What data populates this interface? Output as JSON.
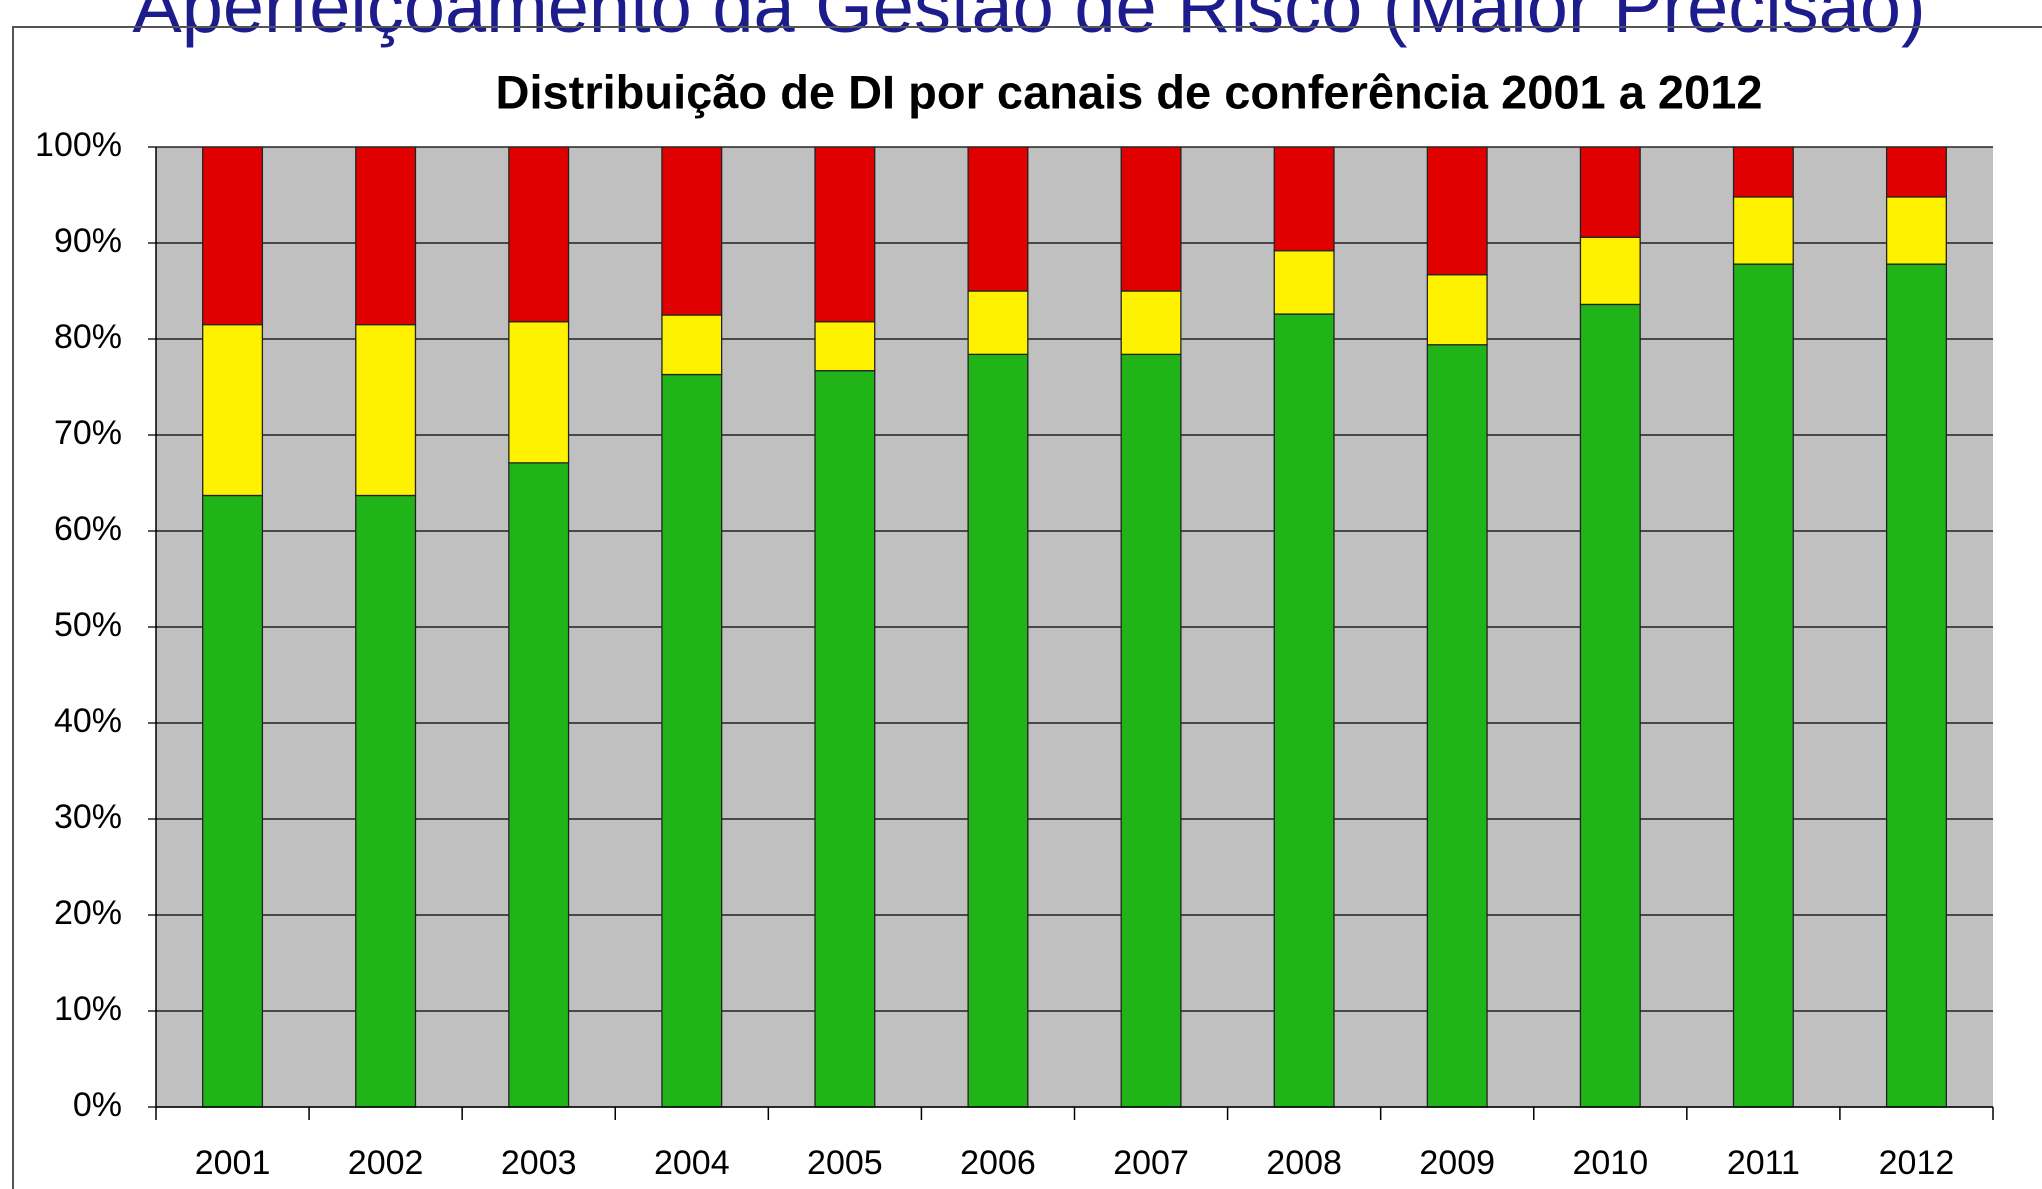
{
  "header": {
    "title": "Aperfeiçoamento da Gestão de Risco (Maior Precisão)"
  },
  "chart_data": {
    "type": "stacked-bar",
    "title": "Distribuição de DI por canais de conferência 2001 a 2012",
    "categories": [
      "2001",
      "2002",
      "2003",
      "2004",
      "2005",
      "2006",
      "2007",
      "2008",
      "2009",
      "2010",
      "2011",
      "2012"
    ],
    "series": [
      {
        "color": "#20b418",
        "values": [
          63.7,
          63.7,
          67.1,
          76.3,
          76.7,
          78.4,
          78.4,
          82.6,
          79.4,
          83.6,
          87.8,
          87.8
        ]
      },
      {
        "color": "#fff200",
        "values": [
          17.8,
          17.8,
          14.7,
          6.2,
          5.1,
          6.6,
          6.6,
          6.6,
          7.3,
          7.0,
          7.0,
          7.0
        ]
      },
      {
        "color": "#e00000",
        "values": [
          18.5,
          18.5,
          18.2,
          17.5,
          18.2,
          15.0,
          15.0,
          10.8,
          13.3,
          9.4,
          5.2,
          5.2
        ]
      }
    ],
    "ylim": [
      0,
      100
    ],
    "yticks": [
      {
        "value": 0,
        "label": "0%"
      },
      {
        "value": 10,
        "label": "10%"
      },
      {
        "value": 20,
        "label": "20%"
      },
      {
        "value": 30,
        "label": "30%"
      },
      {
        "value": 40,
        "label": "40%"
      },
      {
        "value": 50,
        "label": "50%"
      },
      {
        "value": 60,
        "label": "60%"
      },
      {
        "value": 70,
        "label": "70%"
      },
      {
        "value": 80,
        "label": "80%"
      },
      {
        "value": 90,
        "label": "90%"
      },
      {
        "value": 100,
        "label": "100%"
      }
    ],
    "grid": true
  }
}
